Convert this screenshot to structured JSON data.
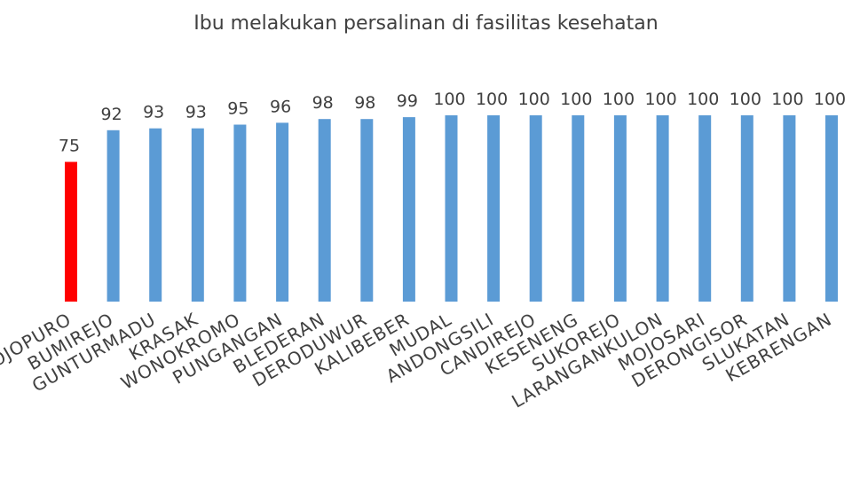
{
  "chart_data": {
    "type": "bar",
    "title": "Ibu melakukan persalinan di fasilitas kesehatan",
    "xlabel": "",
    "ylabel": "",
    "ylim": [
      0,
      100
    ],
    "grid": false,
    "legend": "none",
    "categories": [
      "SOJOPURO",
      "BUMIREJO",
      "GUNTURMADU",
      "KRASAK",
      "WONOKROMO",
      "PUNGANGAN",
      "BLEDERAN",
      "DERODUWUR",
      "KALIBEBER",
      "MUDAL",
      "ANDONGSILI",
      "CANDIREJO",
      "KESENENG",
      "SUKOREJO",
      "LARANGANKULON",
      "MOJOSARI",
      "DERONGISOR",
      "SLUKATAN",
      "KEBRENGAN"
    ],
    "values": [
      75,
      92,
      93,
      93,
      95,
      96,
      98,
      98,
      99,
      100,
      100,
      100,
      100,
      100,
      100,
      100,
      100,
      100,
      100
    ],
    "colors": {
      "default": "#5B9BD5",
      "highlight": "#FF0000",
      "highlight_index": 0
    }
  }
}
